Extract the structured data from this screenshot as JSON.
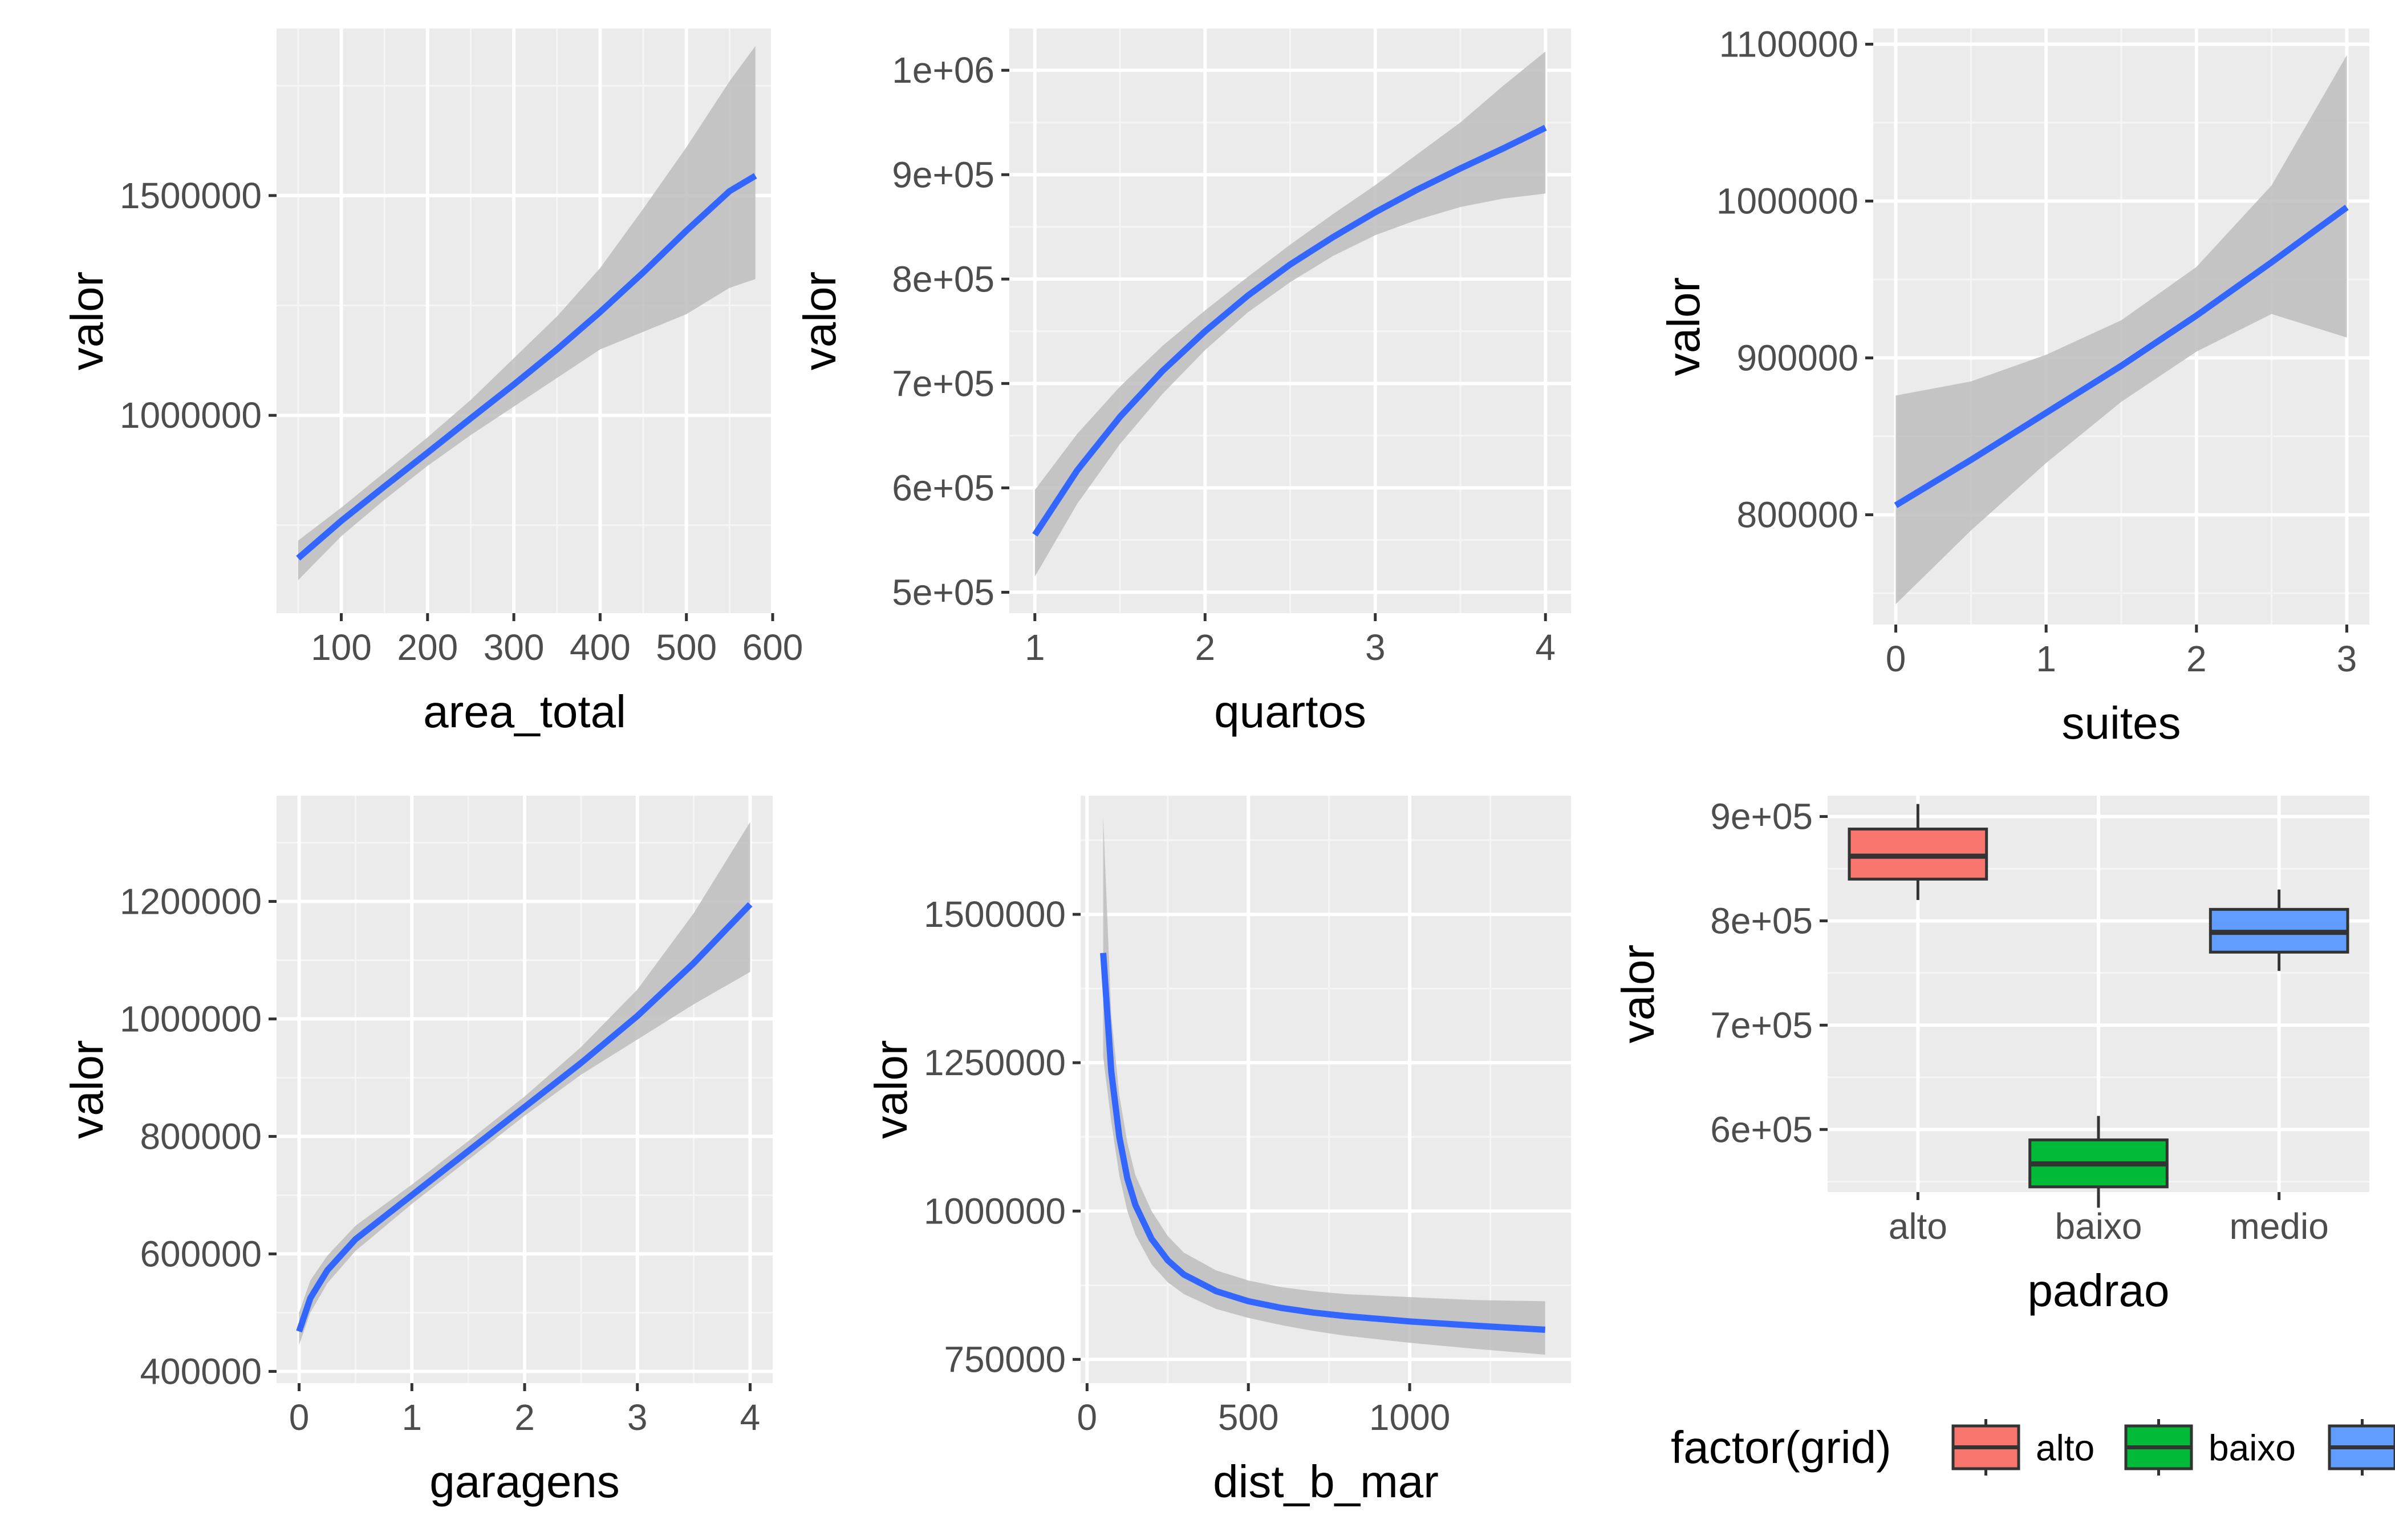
{
  "chart_data": [
    {
      "type": "line",
      "xlabel": "area_total",
      "ylabel": "valor",
      "xlim": [
        25,
        600
      ],
      "ylim": [
        550000,
        1880000
      ],
      "xticks": [
        100,
        200,
        300,
        400,
        500,
        600
      ],
      "xtick_labels": [
        "100",
        "200",
        "300",
        "400",
        "500",
        "600"
      ],
      "yticks": [
        1000000,
        1500000
      ],
      "ytick_labels": [
        "1000000",
        "1500000"
      ],
      "grid": true,
      "line_color": "#3366ff",
      "band_color": "#bdbdbd",
      "x": [
        50,
        100,
        150,
        200,
        250,
        300,
        350,
        400,
        450,
        500,
        550,
        580
      ],
      "y": [
        675000,
        760000,
        838000,
        915000,
        993000,
        1070000,
        1150000,
        1235000,
        1325000,
        1420000,
        1510000,
        1545000
      ],
      "ymin": [
        625000,
        725000,
        808000,
        885000,
        955000,
        1020000,
        1085000,
        1150000,
        1190000,
        1230000,
        1290000,
        1310000
      ],
      "ymax": [
        715000,
        790000,
        870000,
        950000,
        1035000,
        1130000,
        1225000,
        1335000,
        1470000,
        1610000,
        1760000,
        1840000
      ]
    },
    {
      "type": "line",
      "xlabel": "quartos",
      "ylabel": "valor",
      "xlim": [
        0.85,
        4.15
      ],
      "ylim": [
        480000,
        1040000
      ],
      "xticks": [
        1,
        2,
        3,
        4
      ],
      "xtick_labels": [
        "1",
        "2",
        "3",
        "4"
      ],
      "yticks": [
        500000,
        600000,
        700000,
        800000,
        900000,
        1000000
      ],
      "ytick_labels": [
        "5e+05",
        "6e+05",
        "7e+05",
        "8e+05",
        "9e+05",
        "1e+06"
      ],
      "grid": true,
      "line_color": "#3366ff",
      "band_color": "#bdbdbd",
      "x": [
        1,
        1.25,
        1.5,
        1.75,
        2,
        2.25,
        2.5,
        2.75,
        3,
        3.25,
        3.5,
        3.75,
        4
      ],
      "y": [
        555000,
        617000,
        668000,
        712000,
        750000,
        784000,
        814000,
        840000,
        864000,
        886000,
        906000,
        925000,
        945000
      ],
      "ymin": [
        515000,
        585000,
        642000,
        690000,
        732000,
        768000,
        797000,
        822000,
        842000,
        857000,
        869000,
        877000,
        882000
      ],
      "ymax": [
        598000,
        652000,
        697000,
        736000,
        770000,
        802000,
        833000,
        862000,
        890000,
        920000,
        950000,
        985000,
        1018000
      ]
    },
    {
      "type": "line",
      "xlabel": "suites",
      "ylabel": "valor",
      "xlim": [
        -0.15,
        3.15
      ],
      "ylim": [
        730000,
        1110000
      ],
      "xticks": [
        0,
        1,
        2,
        3
      ],
      "xtick_labels": [
        "0",
        "1",
        "2",
        "3"
      ],
      "yticks": [
        800000,
        900000,
        1000000,
        1100000
      ],
      "ytick_labels": [
        "800000",
        "900000",
        "1000000",
        "1100000"
      ],
      "grid": true,
      "line_color": "#3366ff",
      "band_color": "#bdbdbd",
      "x": [
        0,
        0.5,
        1,
        1.5,
        2,
        2.5,
        3
      ],
      "y": [
        806000,
        835000,
        865000,
        895000,
        927000,
        961000,
        996000
      ],
      "ymin": [
        743000,
        790000,
        833000,
        872000,
        904000,
        928000,
        913000
      ],
      "ymax": [
        876000,
        885000,
        902000,
        924000,
        958000,
        1010000,
        1093000
      ]
    },
    {
      "type": "line",
      "xlabel": "garagens",
      "ylabel": "valor",
      "xlim": [
        -0.2,
        4.2
      ],
      "ylim": [
        380000,
        1380000
      ],
      "xticks": [
        0,
        1,
        2,
        3,
        4
      ],
      "xtick_labels": [
        "0",
        "1",
        "2",
        "3",
        "4"
      ],
      "yticks": [
        400000,
        600000,
        800000,
        1000000,
        1200000
      ],
      "ytick_labels": [
        "400000",
        "600000",
        "800000",
        "1000000",
        "1200000"
      ],
      "grid": true,
      "line_color": "#3366ff",
      "band_color": "#bdbdbd",
      "x": [
        0,
        0.1,
        0.25,
        0.5,
        1,
        1.5,
        2,
        2.5,
        3,
        3.5,
        4
      ],
      "y": [
        468000,
        525000,
        572000,
        625000,
        700000,
        775000,
        850000,
        925000,
        1005000,
        1095000,
        1195000
      ],
      "ymin": [
        445000,
        500000,
        550000,
        605000,
        685000,
        760000,
        835000,
        905000,
        965000,
        1025000,
        1080000
      ],
      "ymax": [
        500000,
        555000,
        597000,
        648000,
        718000,
        792000,
        868000,
        952000,
        1050000,
        1180000,
        1335000
      ]
    },
    {
      "type": "line",
      "xlabel": "dist_b_mar",
      "ylabel": "valor",
      "xlim": [
        -20,
        1500
      ],
      "ylim": [
        710000,
        1700000
      ],
      "xticks": [
        0,
        500,
        1000
      ],
      "xtick_labels": [
        "0",
        "500",
        "1000"
      ],
      "yticks": [
        750000,
        1000000,
        1250000,
        1500000
      ],
      "ytick_labels": [
        "750000",
        "1000000",
        "1250000",
        "1500000"
      ],
      "grid": true,
      "line_color": "#3366ff",
      "band_color": "#bdbdbd",
      "x": [
        50,
        75,
        100,
        125,
        150,
        200,
        250,
        300,
        400,
        500,
        600,
        700,
        800,
        1000,
        1200,
        1420
      ],
      "y": [
        1435000,
        1235000,
        1125000,
        1055000,
        1010000,
        953000,
        917000,
        893000,
        865000,
        848000,
        837000,
        829000,
        823000,
        814000,
        807000,
        800000
      ],
      "ymin": [
        1260000,
        1150000,
        1060000,
        1000000,
        960000,
        910000,
        880000,
        860000,
        835000,
        820000,
        808000,
        798000,
        790000,
        778000,
        768000,
        758000
      ],
      "ymax": [
        1665000,
        1330000,
        1195000,
        1115000,
        1060000,
        1000000,
        958000,
        930000,
        900000,
        883000,
        872000,
        865000,
        860000,
        855000,
        850000,
        848000
      ]
    },
    {
      "type": "box",
      "xlabel": "padrao",
      "ylabel": "valor",
      "categories": [
        "alto",
        "baixo",
        "medio"
      ],
      "ylim": [
        540000,
        920000
      ],
      "yticks": [
        600000,
        700000,
        800000,
        900000
      ],
      "ytick_labels": [
        "6e+05",
        "7e+05",
        "8e+05",
        "9e+05"
      ],
      "grid": true,
      "boxes": [
        {
          "category": "alto",
          "whisker_low": 820000,
          "q1": 840000,
          "median": 862000,
          "q3": 888000,
          "whisker_high": 912000,
          "color": "#f8766d"
        },
        {
          "category": "baixo",
          "whisker_low": 525000,
          "q1": 545000,
          "median": 567000,
          "q3": 590000,
          "whisker_high": 613000,
          "color": "#00ba38"
        },
        {
          "category": "medio",
          "whisker_low": 752000,
          "q1": 770000,
          "median": 789000,
          "q3": 811000,
          "whisker_high": 830000,
          "color": "#619cff"
        }
      ]
    }
  ],
  "legend": {
    "title": "factor(grid)",
    "placement": "bottom-right",
    "items": [
      {
        "label": "alto",
        "color": "#f8766d"
      },
      {
        "label": "baixo",
        "color": "#00ba38"
      },
      {
        "label": "",
        "color": "#619cff"
      }
    ]
  }
}
